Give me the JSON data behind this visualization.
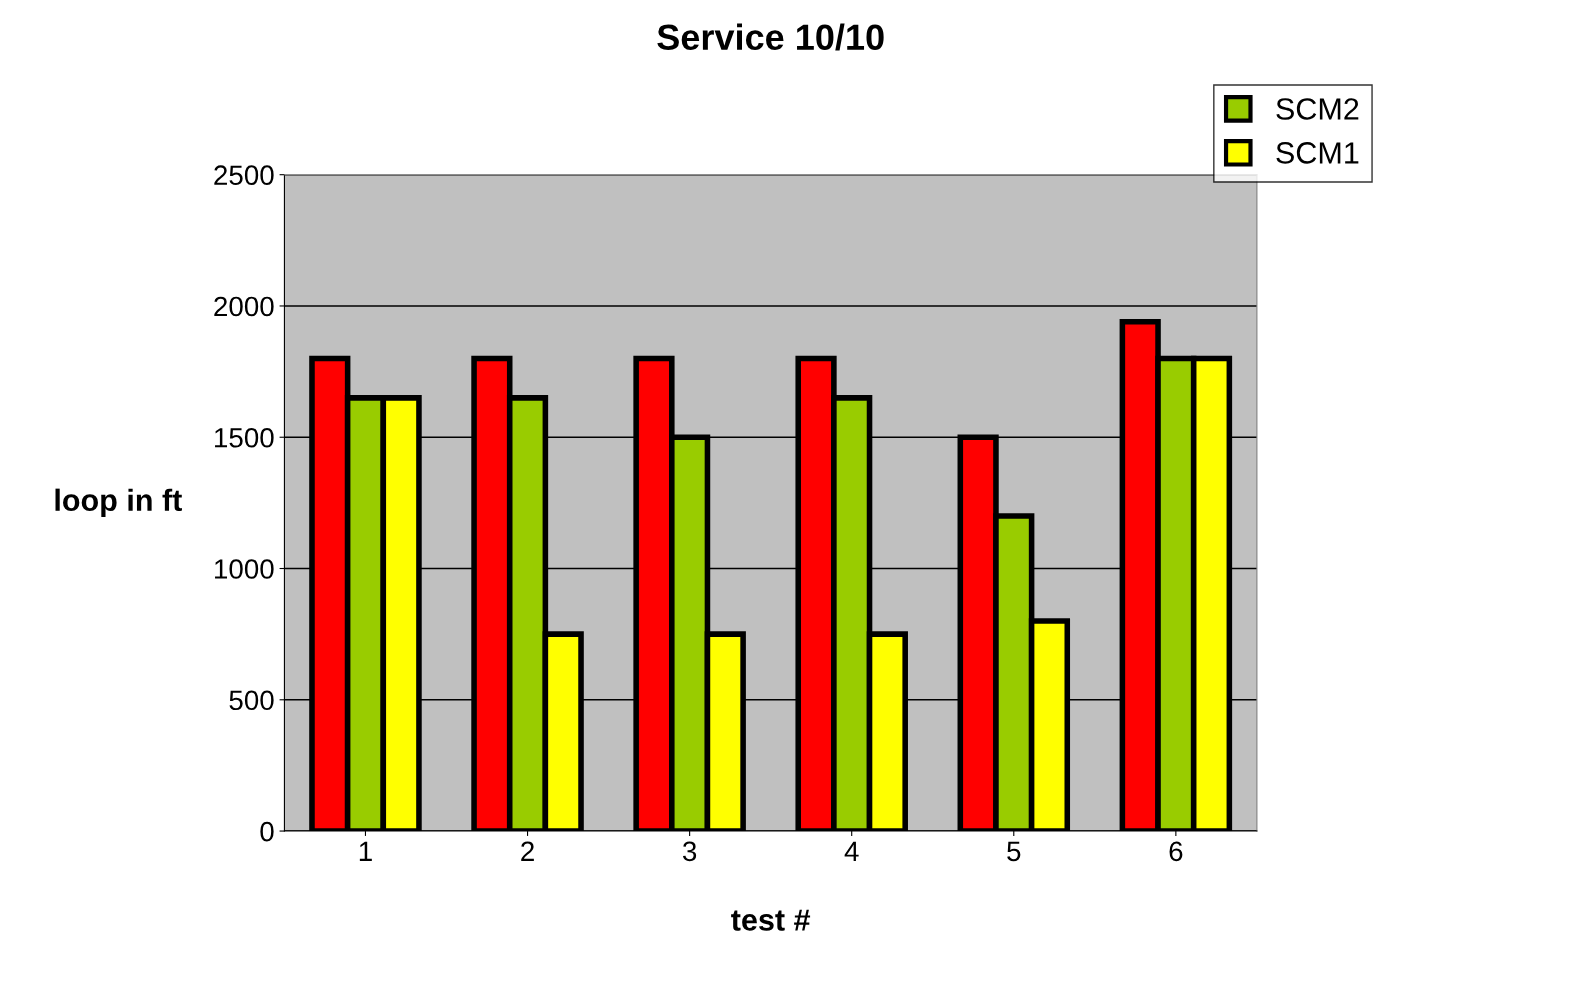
{
  "chart_data": {
    "type": "bar",
    "title": "Service 10/10",
    "xlabel": "test #",
    "ylabel": "loop in ft",
    "categories": [
      "1",
      "2",
      "3",
      "4",
      "5",
      "6"
    ],
    "series": [
      {
        "color": "#ff0000",
        "values": [
          1800,
          1800,
          1800,
          1800,
          1500,
          1940
        ]
      },
      {
        "name": "SCM2",
        "color": "#99cc00",
        "values": [
          1650,
          1650,
          1500,
          1650,
          1200,
          1800
        ]
      },
      {
        "name": "SCM1",
        "color": "#ffff00",
        "values": [
          1650,
          750,
          750,
          750,
          800,
          1800
        ]
      }
    ],
    "ylim": [
      0,
      2500
    ],
    "yticks": [
      0,
      500,
      1000,
      1500,
      2000,
      2500
    ],
    "grid": "y",
    "legend": "top right"
  }
}
